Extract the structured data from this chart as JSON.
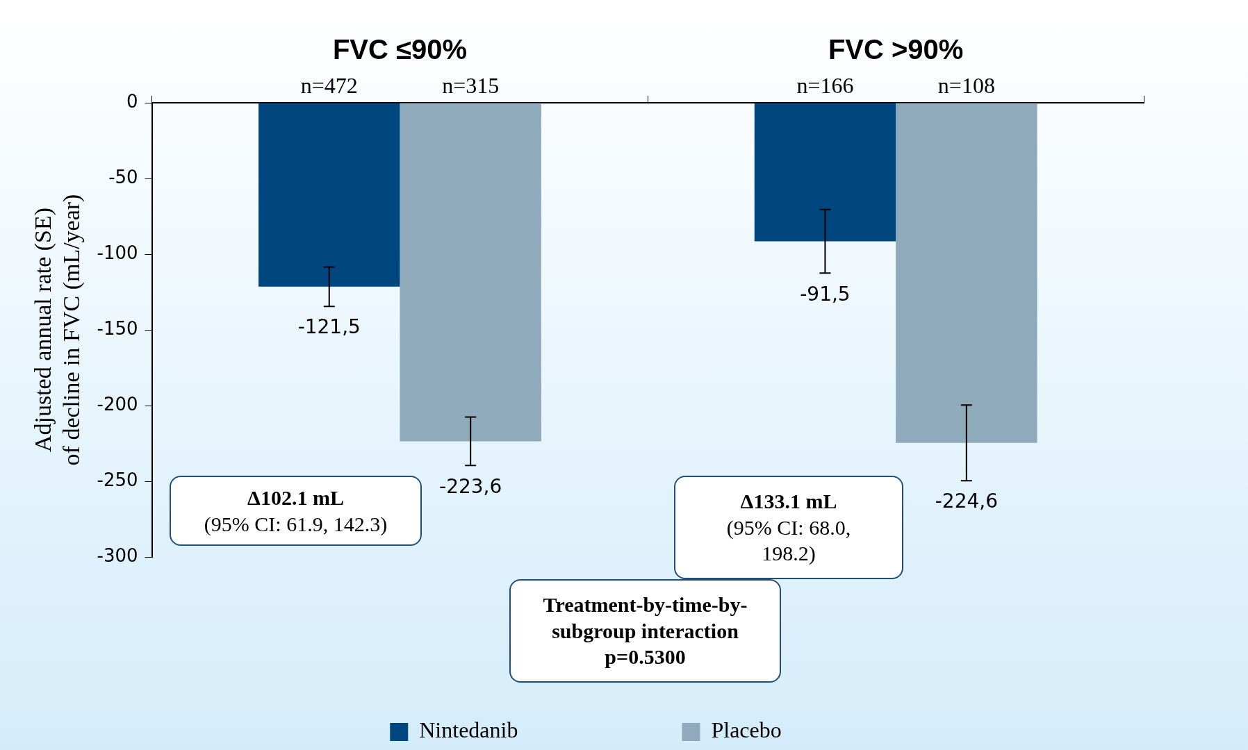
{
  "chart_data": {
    "type": "bar",
    "ylabel": "Adjusted annual rate (SE) of decline in FVC (mL/year)",
    "categories": [
      "FVC ≤90%",
      "FVC >90%"
    ],
    "series": [
      {
        "name": "Nintedanib",
        "color": "#00467f",
        "values": [
          -121.5,
          -91.5
        ],
        "errors": [
          13,
          21
        ],
        "value_labels": [
          "-121,5",
          "-91,5"
        ]
      },
      {
        "name": "Placebo",
        "color": "#8eaabb",
        "values": [
          -223.6,
          -224.6
        ],
        "errors": [
          16,
          25
        ],
        "value_labels": [
          "-223,6",
          "-224,6"
        ]
      }
    ],
    "ylim": [
      -300,
      0
    ],
    "yticks": [
      -300,
      -250,
      -200,
      -150,
      -100,
      -50,
      0
    ],
    "grid": false,
    "legend": "bottom",
    "annotations": [
      {
        "text": "n=472",
        "x": "FVC ≤90%",
        "y": 0
      },
      {
        "text": "n=315",
        "x": "FVC ≤90%",
        "y": 0
      },
      {
        "text": "n=166",
        "x": "FVC >90%",
        "y": 0
      },
      {
        "text": "n=108",
        "x": "FVC >90%",
        "y": 0
      },
      "Δ102.1 mL\n(95% CI: 61.9, 142.3)",
      "Δ133.1 mL\n(95% CI: 68.0,\n198.2)",
      "Treatment-by-time-by-\nsubgroup interaction\np=0.5300"
    ]
  }
}
